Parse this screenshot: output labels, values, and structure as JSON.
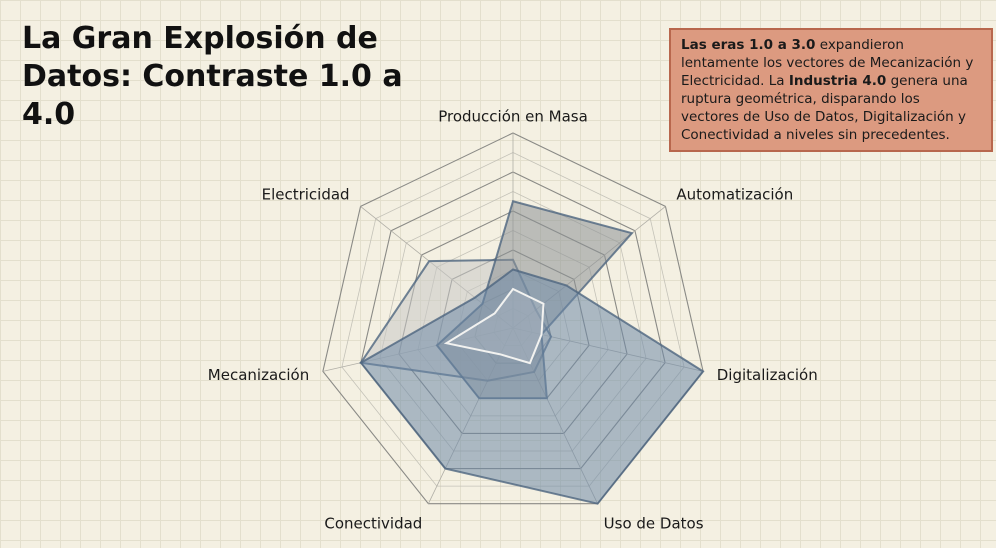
{
  "chart_data": {
    "type": "radar",
    "title": "La Gran Explosión de Datos: Contraste 1.0 a 4.0",
    "annotation": [
      {
        "text": "Las eras 1.0 a 3.0",
        "bold": true
      },
      {
        "text": " expandieron lentamente los vectores de Mecanización y Electricidad. La ",
        "bold": false
      },
      {
        "text": "Industria 4.0",
        "bold": true
      },
      {
        "text": " genera una ruptura geométrica, disparando los vectores de Uso de Datos, Digitalización y Conectividad a niveles sin precedentes.",
        "bold": false
      }
    ],
    "categories": [
      "Producción en Masa",
      "Automatización",
      "Digitalización",
      "Uso de Datos",
      "Conectividad",
      "Mecanización",
      "Electricidad"
    ],
    "ylim": [
      0,
      10
    ],
    "yticks": [
      0,
      1,
      2,
      3,
      4,
      5,
      6,
      7,
      8,
      9,
      10
    ],
    "series": [
      {
        "color": "#c9c9c6",
        "values": [
          3.5,
          1.5,
          2,
          2.5,
          3,
          8,
          5.5
        ]
      },
      {
        "color": "#8d9196",
        "values": [
          6.5,
          7.8,
          1.5,
          4,
          4,
          4,
          2
        ]
      },
      {
        "color": "#6f8aa8",
        "values": [
          3,
          3.5,
          10,
          10,
          8,
          8,
          2.5
        ]
      },
      {
        "color": "#f2f2f0",
        "values": [
          2,
          2,
          1.5,
          2,
          1.5,
          3.5,
          1.2
        ]
      }
    ]
  }
}
